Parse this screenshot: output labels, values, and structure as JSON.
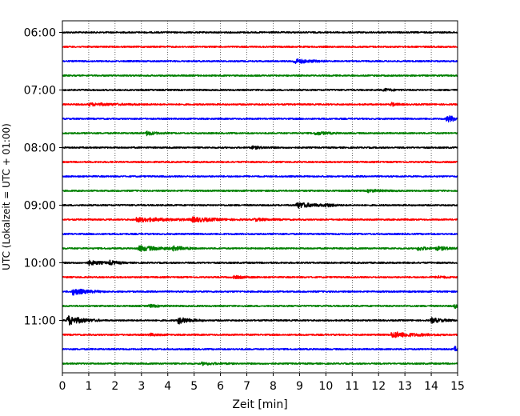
{
  "chart_data": {
    "type": "line",
    "subtype": "helicorder",
    "xlabel": "Zeit  [min]",
    "ylabel": "UTC (Lokalzeit = UTC + 01:00)",
    "xlim": [
      0,
      15
    ],
    "x_ticks": [
      "0",
      "1",
      "2",
      "3",
      "4",
      "5",
      "6",
      "7",
      "8",
      "9",
      "10",
      "11",
      "12",
      "13",
      "14",
      "15"
    ],
    "y_tick_labels": [
      "06:00",
      "07:00",
      "08:00",
      "09:00",
      "10:00",
      "11:00"
    ],
    "y_tick_traces": [
      0,
      4,
      8,
      12,
      16,
      20
    ],
    "vertical_grid": true,
    "trace_interval_min": 15,
    "trace_colors": [
      "#000000",
      "#ff0000",
      "#0000ff",
      "#008000"
    ],
    "trace_count": 24,
    "events": [
      {
        "trace": 2,
        "t": 8.8,
        "amp": 3.0,
        "dur": 0.5
      },
      {
        "trace": 4,
        "t": 12.2,
        "amp": 1.5,
        "dur": 0.3
      },
      {
        "trace": 5,
        "t": 1.0,
        "amp": 1.5,
        "dur": 1.0
      },
      {
        "trace": 5,
        "t": 12.5,
        "amp": 2.0,
        "dur": 0.2
      },
      {
        "trace": 6,
        "t": 14.6,
        "amp": 4.0,
        "dur": 0.4
      },
      {
        "trace": 7,
        "t": 3.2,
        "amp": 2.5,
        "dur": 0.3
      },
      {
        "trace": 7,
        "t": 9.6,
        "amp": 2.0,
        "dur": 0.4
      },
      {
        "trace": 8,
        "t": 7.2,
        "amp": 1.5,
        "dur": 0.4
      },
      {
        "trace": 11,
        "t": 11.6,
        "amp": 1.5,
        "dur": 0.5
      },
      {
        "trace": 12,
        "t": 8.9,
        "amp": 3.5,
        "dur": 0.6
      },
      {
        "trace": 12,
        "t": 10.0,
        "amp": 1.5,
        "dur": 0.3
      },
      {
        "trace": 13,
        "t": 2.8,
        "amp": 2.5,
        "dur": 1.2
      },
      {
        "trace": 13,
        "t": 4.9,
        "amp": 2.5,
        "dur": 0.8
      },
      {
        "trace": 13,
        "t": 7.3,
        "amp": 1.5,
        "dur": 0.5
      },
      {
        "trace": 15,
        "t": 2.9,
        "amp": 3.0,
        "dur": 0.8
      },
      {
        "trace": 15,
        "t": 4.2,
        "amp": 2.0,
        "dur": 0.4
      },
      {
        "trace": 15,
        "t": 13.5,
        "amp": 2.5,
        "dur": 0.3
      },
      {
        "trace": 15,
        "t": 14.2,
        "amp": 2.0,
        "dur": 0.6
      },
      {
        "trace": 16,
        "t": 1.0,
        "amp": 2.5,
        "dur": 0.5
      },
      {
        "trace": 16,
        "t": 1.8,
        "amp": 2.0,
        "dur": 0.3
      },
      {
        "trace": 17,
        "t": 6.5,
        "amp": 1.5,
        "dur": 0.4
      },
      {
        "trace": 17,
        "t": 14.2,
        "amp": 1.5,
        "dur": 0.3
      },
      {
        "trace": 18,
        "t": 0.4,
        "amp": 4.0,
        "dur": 0.5
      },
      {
        "trace": 19,
        "t": 3.3,
        "amp": 1.5,
        "dur": 0.3
      },
      {
        "trace": 19,
        "t": 14.9,
        "amp": 2.5,
        "dur": 0.2
      },
      {
        "trace": 20,
        "t": 0.2,
        "amp": 6.0,
        "dur": 0.5
      },
      {
        "trace": 20,
        "t": 4.4,
        "amp": 4.0,
        "dur": 0.4
      },
      {
        "trace": 20,
        "t": 14.0,
        "amp": 3.0,
        "dur": 0.4
      },
      {
        "trace": 21,
        "t": 3.3,
        "amp": 1.5,
        "dur": 0.3
      },
      {
        "trace": 21,
        "t": 12.5,
        "amp": 3.5,
        "dur": 0.8
      },
      {
        "trace": 22,
        "t": 14.9,
        "amp": 3.0,
        "dur": 0.2
      },
      {
        "trace": 23,
        "t": 5.3,
        "amp": 1.5,
        "dur": 0.5
      }
    ]
  }
}
